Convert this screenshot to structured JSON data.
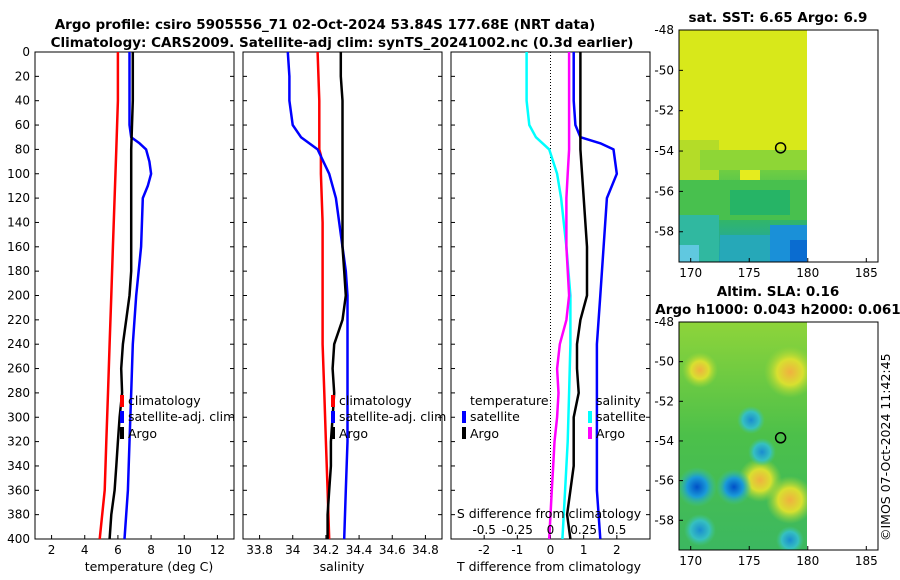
{
  "header": {
    "title_line1": "Argo profile: csiro 5905556_71 02-Oct-2024 53.84S 177.68E (NRT data)",
    "title_line2": "Climatology: CARS2009. Satellite-adj clim: synTS_20241002.nc (0.3d earlier)"
  },
  "watermark": "©IMOS 07-Oct-2024 11:42:45",
  "colors": {
    "climatology": "#ff0000",
    "satellite": "#0000ff",
    "argo": "#000000",
    "salinity_satellite": "#00ffff",
    "salinity_argo": "#ff00ff"
  },
  "depth_ticks": [
    "0",
    "20",
    "40",
    "60",
    "80",
    "100",
    "120",
    "140",
    "160",
    "180",
    "200",
    "220",
    "240",
    "260",
    "280",
    "300",
    "320",
    "340",
    "360",
    "380",
    "400"
  ],
  "chart_data": [
    {
      "type": "line",
      "name": "temperature profile",
      "xlabel": "temperature (deg C)",
      "ylabel": "",
      "xlim": [
        1,
        13
      ],
      "ylim": [
        400,
        0
      ],
      "x_ticks": [
        "2",
        "4",
        "6",
        "8",
        "10",
        "12"
      ],
      "legend": [
        "climatology",
        "satellite-adj. clim",
        "Argo"
      ],
      "series": [
        {
          "name": "climatology",
          "depth": [
            0,
            40,
            80,
            120,
            160,
            200,
            240,
            280,
            320,
            360,
            400
          ],
          "values": [
            6.0,
            6.0,
            5.9,
            5.8,
            5.7,
            5.6,
            5.5,
            5.4,
            5.3,
            5.2,
            4.9
          ]
        },
        {
          "name": "satellite-adj. clim",
          "depth": [
            0,
            20,
            40,
            60,
            70,
            75,
            80,
            90,
            100,
            110,
            120,
            160,
            200,
            240,
            280,
            320,
            360,
            400
          ],
          "values": [
            6.7,
            6.7,
            6.7,
            6.7,
            6.8,
            7.3,
            7.7,
            7.9,
            8.0,
            7.8,
            7.5,
            7.4,
            7.1,
            6.9,
            6.8,
            6.7,
            6.6,
            6.4
          ]
        },
        {
          "name": "Argo",
          "depth": [
            0,
            20,
            40,
            60,
            80,
            100,
            140,
            180,
            200,
            220,
            240,
            260,
            280,
            300,
            320,
            340,
            360,
            380,
            400
          ],
          "values": [
            6.9,
            6.9,
            6.9,
            6.85,
            6.8,
            6.8,
            6.8,
            6.8,
            6.7,
            6.5,
            6.3,
            6.2,
            6.25,
            6.1,
            6.0,
            5.9,
            5.8,
            5.6,
            5.5
          ]
        }
      ]
    },
    {
      "type": "line",
      "name": "salinity profile",
      "xlabel": "salinity",
      "xlim": [
        33.7,
        34.9
      ],
      "ylim": [
        400,
        0
      ],
      "x_ticks": [
        "33.8",
        "34",
        "34.2",
        "34.4",
        "34.6",
        "34.8"
      ],
      "legend": [
        "climatology",
        "satellite-adj. clim",
        "Argo"
      ],
      "series": [
        {
          "name": "climatology",
          "depth": [
            0,
            40,
            70,
            80,
            85,
            100,
            140,
            200,
            240,
            280,
            320,
            360,
            400
          ],
          "values": [
            34.15,
            34.16,
            34.16,
            34.16,
            34.17,
            34.17,
            34.18,
            34.18,
            34.18,
            34.19,
            34.2,
            34.21,
            34.22
          ]
        },
        {
          "name": "satellite-adj. clim",
          "depth": [
            0,
            20,
            40,
            60,
            70,
            80,
            100,
            120,
            140,
            160,
            180,
            200,
            240,
            280,
            320,
            360,
            400
          ],
          "values": [
            33.97,
            33.98,
            33.98,
            34.0,
            34.05,
            34.15,
            34.22,
            34.26,
            34.28,
            34.3,
            34.32,
            34.33,
            34.33,
            34.33,
            34.33,
            34.32,
            34.31
          ]
        },
        {
          "name": "Argo",
          "depth": [
            0,
            20,
            40,
            60,
            80,
            120,
            160,
            180,
            200,
            220,
            240,
            260,
            280,
            300,
            320,
            340,
            360,
            380,
            400
          ],
          "values": [
            34.29,
            34.29,
            34.3,
            34.3,
            34.3,
            34.3,
            34.3,
            34.31,
            34.32,
            34.3,
            34.25,
            34.24,
            34.25,
            34.24,
            34.23,
            34.23,
            34.22,
            34.21,
            34.21
          ]
        }
      ]
    },
    {
      "type": "line",
      "name": "difference from climatology",
      "xlabel": "T difference from climatology",
      "xlim": [
        -3,
        3
      ],
      "ylim": [
        400,
        0
      ],
      "x_ticks": [
        "-2",
        "-1",
        "0",
        "1",
        "2"
      ],
      "s_axis_label": "S difference from climatology",
      "s_ticks": [
        "-0.5",
        "-0.25",
        "0",
        "0.25",
        "0.5"
      ],
      "legend_temperature": {
        "header": "temperature",
        "items": [
          "satellite",
          "Argo"
        ]
      },
      "legend_salinity": {
        "header": "salinity",
        "items": [
          "satellite",
          "Argo"
        ]
      },
      "series": [
        {
          "name": "temperature satellite",
          "depth": [
            0,
            20,
            40,
            60,
            70,
            75,
            80,
            100,
            120,
            160,
            200,
            240,
            280,
            320,
            360,
            400
          ],
          "values": [
            0.7,
            0.7,
            0.7,
            0.75,
            0.9,
            1.5,
            1.9,
            2.0,
            1.7,
            1.6,
            1.5,
            1.4,
            1.4,
            1.4,
            1.4,
            1.5
          ]
        },
        {
          "name": "temperature Argo",
          "depth": [
            0,
            40,
            80,
            120,
            160,
            200,
            220,
            240,
            260,
            280,
            300,
            320,
            340,
            360,
            380,
            400
          ],
          "values": [
            0.9,
            0.9,
            0.9,
            1.0,
            1.1,
            1.1,
            0.9,
            0.8,
            0.8,
            0.85,
            0.7,
            0.7,
            0.7,
            0.6,
            0.5,
            0.6
          ]
        },
        {
          "name": "salinity satellite",
          "depth": [
            0,
            20,
            40,
            60,
            70,
            80,
            100,
            120,
            160,
            200,
            240,
            280,
            320,
            360,
            400
          ],
          "values": [
            -0.18,
            -0.18,
            -0.18,
            -0.16,
            -0.11,
            -0.01,
            0.05,
            0.08,
            0.12,
            0.15,
            0.15,
            0.14,
            0.13,
            0.11,
            0.09
          ]
        },
        {
          "name": "salinity Argo",
          "depth": [
            0,
            40,
            80,
            100,
            120,
            160,
            200,
            220,
            240,
            260,
            280,
            300,
            320,
            340,
            360,
            380,
            400
          ],
          "values": [
            0.14,
            0.14,
            0.14,
            0.13,
            0.12,
            0.12,
            0.14,
            0.12,
            0.07,
            0.05,
            0.06,
            0.05,
            0.03,
            0.02,
            0.01,
            0.0,
            -0.01
          ]
        }
      ]
    },
    {
      "type": "heatmap",
      "name": "satellite SST map",
      "title": "sat. SST: 6.65 Argo: 6.9",
      "xlim": [
        169,
        186
      ],
      "ylim": [
        -59.5,
        -48
      ],
      "x_ticks": [
        "170",
        "175",
        "180",
        "185"
      ],
      "y_ticks": [
        "-48",
        "-50",
        "-52",
        "-54",
        "-56",
        "-58"
      ],
      "argo_position": {
        "lon": 177.68,
        "lat": -53.84
      }
    },
    {
      "type": "heatmap",
      "name": "altimetry SLA map",
      "title_line1": "Altim. SLA: 0.16",
      "title_line2": "Argo h1000: 0.043 h2000: 0.061",
      "xlim": [
        169,
        186
      ],
      "ylim": [
        -59.5,
        -48
      ],
      "x_ticks": [
        "170",
        "175",
        "180",
        "185"
      ],
      "y_ticks": [
        "-48",
        "-50",
        "-52",
        "-54",
        "-56",
        "-58"
      ],
      "argo_position": {
        "lon": 177.68,
        "lat": -53.84
      }
    }
  ]
}
